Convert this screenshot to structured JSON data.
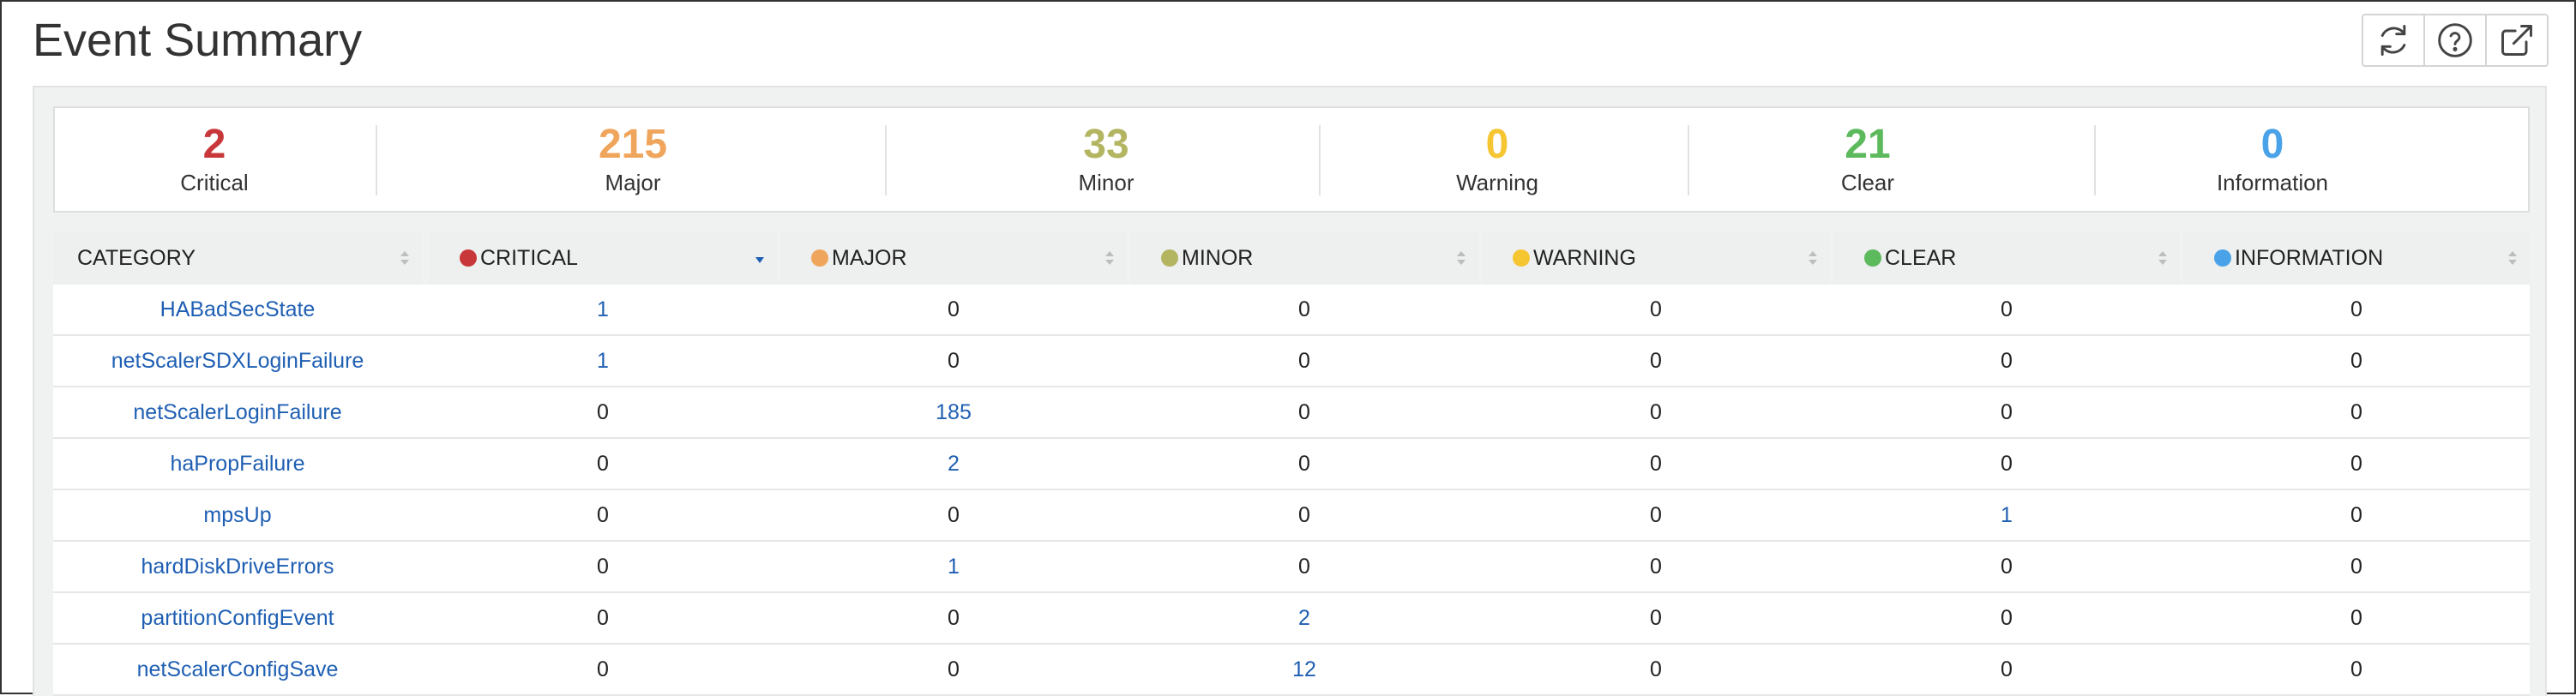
{
  "page": {
    "title": "Event Summary"
  },
  "toolbar": {
    "buttons": [
      {
        "icon": "refresh-icon"
      },
      {
        "icon": "help-icon"
      },
      {
        "icon": "external-link-icon"
      }
    ]
  },
  "colors": {
    "critical": "#c8383a",
    "major": "#f0a55c",
    "minor": "#b3b560",
    "warning": "#f6c532",
    "clear": "#5cb95c",
    "information": "#4aa3e8",
    "link": "#1f5fb3"
  },
  "summary": [
    {
      "key": "critical",
      "count": "2",
      "label": "Critical"
    },
    {
      "key": "major",
      "count": "215",
      "label": "Major"
    },
    {
      "key": "minor",
      "count": "33",
      "label": "Minor"
    },
    {
      "key": "warning",
      "count": "0",
      "label": "Warning"
    },
    {
      "key": "clear",
      "count": "21",
      "label": "Clear"
    },
    {
      "key": "information",
      "count": "0",
      "label": "Information"
    }
  ],
  "table": {
    "headers": [
      {
        "key": "category",
        "label": "CATEGORY",
        "sort": "none"
      },
      {
        "key": "critical",
        "label": "CRITICAL",
        "sort": "desc"
      },
      {
        "key": "major",
        "label": "MAJOR",
        "sort": "none"
      },
      {
        "key": "minor",
        "label": "MINOR",
        "sort": "none"
      },
      {
        "key": "warning",
        "label": "WARNING",
        "sort": "none"
      },
      {
        "key": "clear",
        "label": "CLEAR",
        "sort": "none"
      },
      {
        "key": "information",
        "label": "INFORMATION",
        "sort": "none"
      }
    ],
    "rows": [
      {
        "category": "HABadSecState",
        "values": [
          "1",
          "0",
          "0",
          "0",
          "0",
          "0"
        ]
      },
      {
        "category": "netScalerSDXLoginFailure",
        "values": [
          "1",
          "0",
          "0",
          "0",
          "0",
          "0"
        ]
      },
      {
        "category": "netScalerLoginFailure",
        "values": [
          "0",
          "185",
          "0",
          "0",
          "0",
          "0"
        ]
      },
      {
        "category": "haPropFailure",
        "values": [
          "0",
          "2",
          "0",
          "0",
          "0",
          "0"
        ]
      },
      {
        "category": "mpsUp",
        "values": [
          "0",
          "0",
          "0",
          "0",
          "1",
          "0"
        ]
      },
      {
        "category": "hardDiskDriveErrors",
        "values": [
          "0",
          "1",
          "0",
          "0",
          "0",
          "0"
        ]
      },
      {
        "category": "partitionConfigEvent",
        "values": [
          "0",
          "0",
          "2",
          "0",
          "0",
          "0"
        ]
      },
      {
        "category": "netScalerConfigSave",
        "values": [
          "0",
          "0",
          "12",
          "0",
          "0",
          "0"
        ]
      }
    ]
  }
}
